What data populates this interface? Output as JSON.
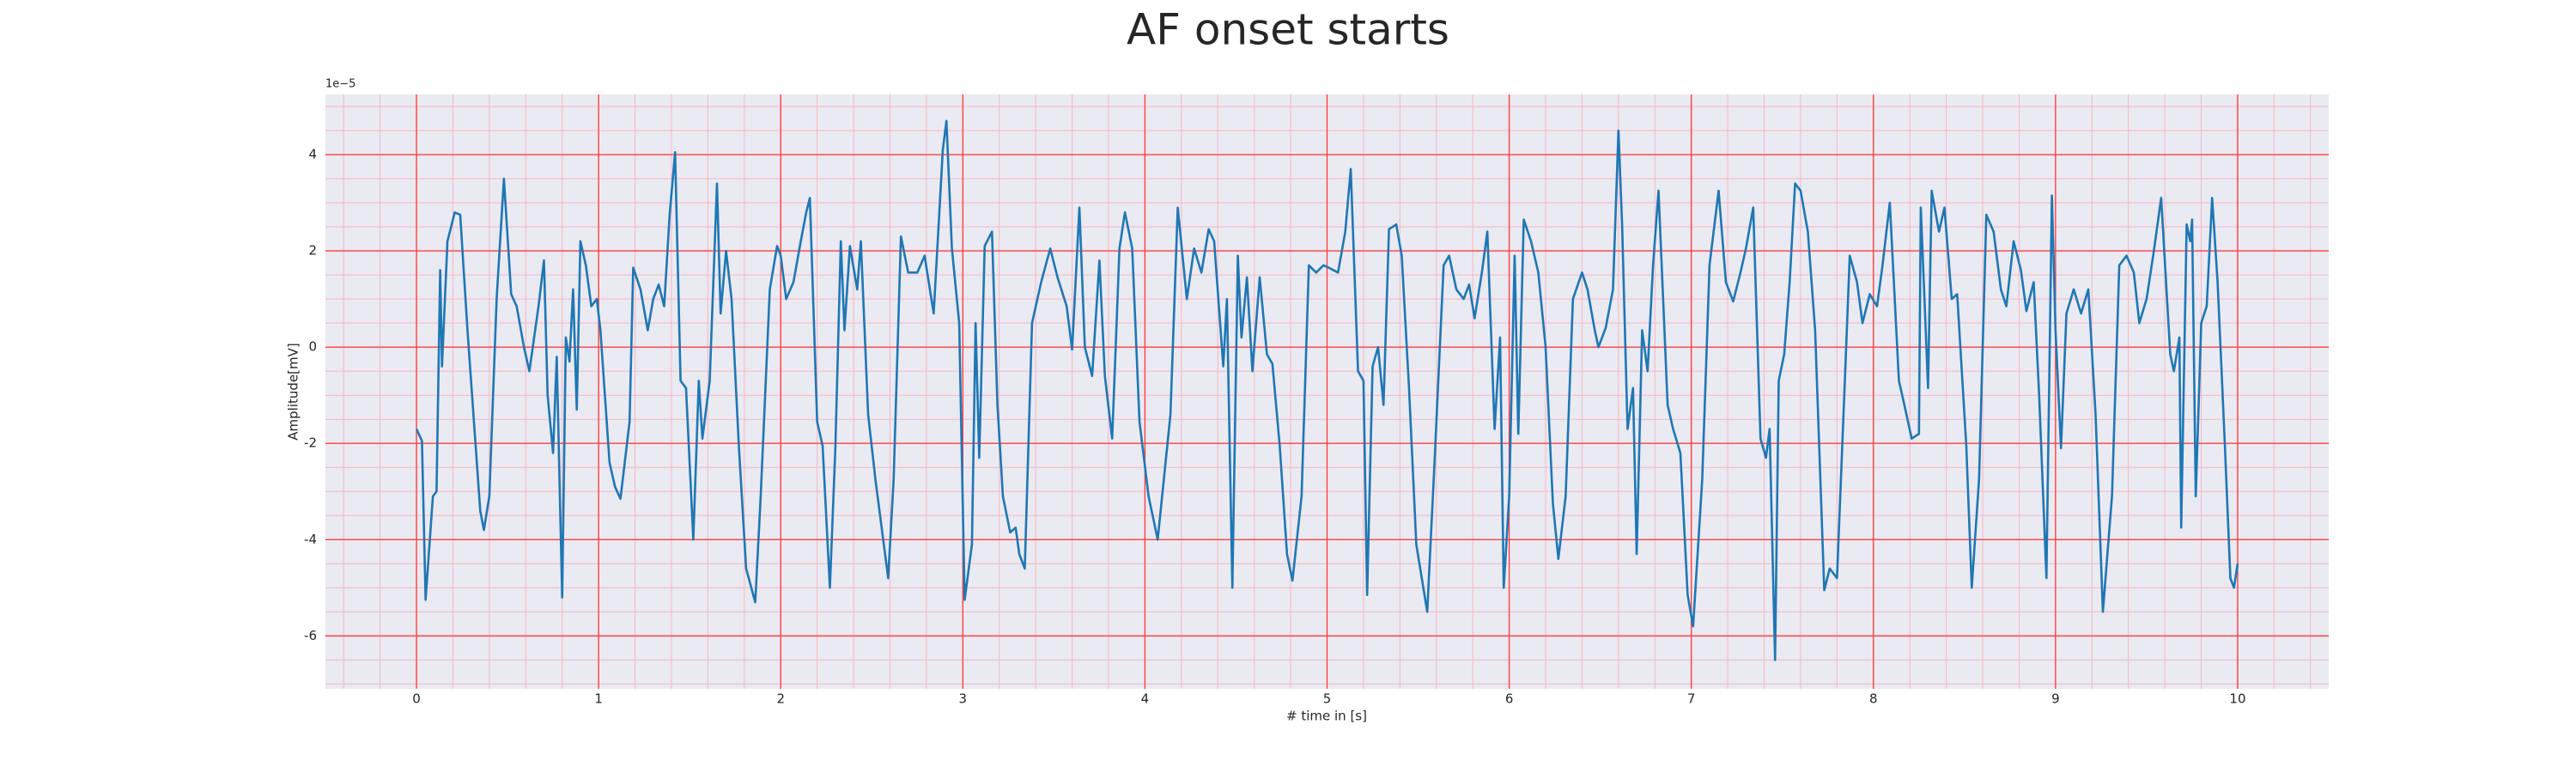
{
  "chart_data": {
    "type": "line",
    "title": "AF onset starts",
    "xlabel": "# time in [s]",
    "ylabel": "Amplitude[mV]",
    "y_offset_text": "1e−5",
    "xlim": [
      -0.5,
      10.5
    ],
    "ylim": [
      -7.1,
      5.25
    ],
    "xticks": [
      0,
      1,
      2,
      3,
      4,
      5,
      6,
      7,
      8,
      9,
      10
    ],
    "yticks": [
      -6,
      -4,
      -2,
      0,
      2,
      4
    ],
    "xminorticks": [
      -0.4,
      -0.2,
      0,
      0.2,
      0.4,
      0.6,
      0.8,
      1,
      1.2,
      1.4,
      1.6,
      1.8,
      2,
      2.2,
      2.4,
      2.6,
      2.8,
      3,
      3.2,
      3.4,
      3.6,
      3.8,
      4,
      4.2,
      4.4,
      4.6,
      4.8,
      5,
      5.2,
      5.4,
      5.6,
      5.8,
      6,
      6.2,
      6.4,
      6.6,
      6.8,
      7,
      7.2,
      7.4,
      7.6,
      7.8,
      8,
      8.2,
      8.4,
      8.6,
      8.8,
      9,
      9.2,
      9.4,
      9.6,
      9.8,
      10,
      10.2,
      10.4
    ],
    "yminorticks": [
      -7,
      -6.5,
      -6,
      -5.5,
      -5,
      -4.5,
      -4,
      -3.5,
      -3,
      -2.5,
      -2,
      -1.5,
      -1,
      -0.5,
      0,
      0.5,
      1,
      1.5,
      2,
      2.5,
      3,
      3.5,
      4,
      4.5,
      5
    ],
    "grid": true,
    "background": "#eaeaf2",
    "major_grid_color": "#ff4040",
    "minor_grid_color": "#f7b6c2",
    "series": [
      {
        "color": "#1f77b4",
        "x": [
          0,
          0.03,
          0.05,
          0.09,
          0.11,
          0.13,
          0.14,
          0.17,
          0.21,
          0.24,
          0.28,
          0.35,
          0.37,
          0.4,
          0.44,
          0.48,
          0.52,
          0.55,
          0.59,
          0.62,
          0.67,
          0.7,
          0.72,
          0.75,
          0.77,
          0.8,
          0.82,
          0.84,
          0.86,
          0.88,
          0.9,
          0.93,
          0.96,
          0.99,
          1.01,
          1.06,
          1.09,
          1.12,
          1.17,
          1.19,
          1.23,
          1.27,
          1.3,
          1.33,
          1.36,
          1.39,
          1.42,
          1.45,
          1.48,
          1.52,
          1.55,
          1.57,
          1.61,
          1.65,
          1.67,
          1.7,
          1.73,
          1.77,
          1.81,
          1.86,
          1.89,
          1.94,
          1.98,
          2.0,
          2.03,
          2.07,
          2.11,
          2.14,
          2.16,
          2.2,
          2.23,
          2.27,
          2.3,
          2.33,
          2.35,
          2.38,
          2.42,
          2.44,
          2.48,
          2.52,
          2.59,
          2.62,
          2.66,
          2.7,
          2.75,
          2.79,
          2.84,
          2.89,
          2.91,
          2.94,
          2.98,
          3.01,
          3.05,
          3.07,
          3.09,
          3.12,
          3.16,
          3.19,
          3.22,
          3.26,
          3.29,
          3.31,
          3.34,
          3.38,
          3.43,
          3.48,
          3.52,
          3.57,
          3.6,
          3.64,
          3.67,
          3.71,
          3.75,
          3.78,
          3.82,
          3.86,
          3.89,
          3.93,
          3.97,
          4.02,
          4.07,
          4.14,
          4.18,
          4.23,
          4.27,
          4.31,
          4.35,
          4.38,
          4.43,
          4.45,
          4.48,
          4.51,
          4.53,
          4.56,
          4.59,
          4.63,
          4.67,
          4.7,
          4.74,
          4.78,
          4.81,
          4.86,
          4.9,
          4.94,
          4.98,
          5.01,
          5.06,
          5.1,
          5.13,
          5.17,
          5.2,
          5.22,
          5.25,
          5.28,
          5.31,
          5.34,
          5.38,
          5.41,
          5.45,
          5.49,
          5.55,
          5.59,
          5.64,
          5.67,
          5.71,
          5.75,
          5.78,
          5.81,
          5.85,
          5.88,
          5.92,
          5.95,
          5.97,
          6.0,
          6.03,
          6.05,
          6.08,
          6.12,
          6.16,
          6.2,
          6.24,
          6.27,
          6.31,
          6.35,
          6.4,
          6.43,
          6.47,
          6.49,
          6.53,
          6.57,
          6.6,
          6.62,
          6.65,
          6.68,
          6.7,
          6.73,
          6.76,
          6.79,
          6.82,
          6.87,
          6.9,
          6.94,
          6.98,
          7.01,
          7.06,
          7.1,
          7.15,
          7.19,
          7.23,
          7.27,
          7.3,
          7.34,
          7.38,
          7.41,
          7.43,
          7.46,
          7.48,
          7.51,
          7.54,
          7.57,
          7.6,
          7.64,
          7.68,
          7.73,
          7.76,
          7.8,
          7.84,
          7.87,
          7.91,
          7.94,
          7.98,
          8.02,
          8.05,
          8.09,
          8.14,
          8.17,
          8.21,
          8.25,
          8.26,
          8.3,
          8.32,
          8.36,
          8.39,
          8.43,
          8.46,
          8.51,
          8.54,
          8.58,
          8.62,
          8.66,
          8.7,
          8.73,
          8.77,
          8.81,
          8.84,
          8.88,
          8.91,
          8.95,
          8.98,
          9.0,
          9.03,
          9.06,
          9.1,
          9.14,
          9.18,
          9.22,
          9.26,
          9.31,
          9.35,
          9.39,
          9.43,
          9.46,
          9.5,
          9.54,
          9.58,
          9.63,
          9.65,
          9.68,
          9.69,
          9.72,
          9.74,
          9.75,
          9.77,
          9.8,
          9.83,
          9.86,
          9.89,
          9.93,
          9.96,
          9.98,
          10.0
        ],
        "values": [
          -1.7,
          -1.95,
          -5.25,
          -3.1,
          -3.0,
          1.6,
          -0.4,
          2.2,
          2.8,
          2.75,
          0.35,
          -3.4,
          -3.8,
          -3.1,
          1.0,
          3.5,
          1.1,
          0.85,
          0,
          -0.5,
          0.85,
          1.8,
          -1.0,
          -2.2,
          -0.2,
          -5.2,
          0.2,
          -0.3,
          1.2,
          -1.3,
          2.2,
          1.7,
          0.85,
          1.0,
          0.35,
          -2.4,
          -2.9,
          -3.15,
          -1.55,
          1.65,
          1.2,
          0.35,
          1.0,
          1.3,
          0.85,
          2.75,
          4.05,
          -0.7,
          -0.85,
          -4.0,
          -0.7,
          -1.9,
          -0.7,
          3.4,
          0.7,
          2.0,
          1.0,
          -2.05,
          -4.6,
          -5.3,
          -3.1,
          1.2,
          2.1,
          1.9,
          1.0,
          1.35,
          2.2,
          2.8,
          3.1,
          -1.55,
          -2.05,
          -5.0,
          -2.1,
          2.2,
          0.35,
          2.1,
          1.2,
          2.2,
          -1.4,
          -2.75,
          -4.8,
          -2.75,
          2.3,
          1.55,
          1.55,
          1.9,
          0.7,
          4.1,
          4.7,
          2.05,
          0.5,
          -5.25,
          -4.1,
          0.5,
          -2.3,
          2.1,
          2.4,
          -1.2,
          -3.1,
          -3.85,
          -3.75,
          -4.3,
          -4.6,
          0.5,
          1.35,
          2.05,
          1.45,
          0.85,
          -0.05,
          2.9,
          0,
          -0.6,
          1.8,
          -0.6,
          -1.9,
          2.05,
          2.8,
          2.05,
          -1.55,
          -3.1,
          -4.0,
          -1.4,
          2.9,
          1.0,
          2.05,
          1.55,
          2.45,
          2.2,
          -0.4,
          1.0,
          -5.0,
          1.9,
          0.2,
          1.45,
          -0.5,
          1.45,
          -0.15,
          -0.35,
          -2.05,
          -4.3,
          -4.85,
          -3.1,
          1.7,
          1.55,
          1.7,
          1.65,
          1.55,
          2.4,
          3.7,
          -0.5,
          -0.7,
          -5.15,
          -0.4,
          0,
          -1.2,
          2.45,
          2.55,
          1.9,
          -0.85,
          -4.1,
          -5.5,
          -2.4,
          1.7,
          1.9,
          1.2,
          1.0,
          1.3,
          0.6,
          1.55,
          2.4,
          -1.7,
          0.2,
          -5.0,
          -3.1,
          1.9,
          -1.8,
          2.65,
          2.2,
          1.55,
          0,
          -3.25,
          -4.4,
          -3.1,
          1.0,
          1.55,
          1.2,
          0.35,
          0,
          0.4,
          1.2,
          4.5,
          2.55,
          -1.7,
          -0.85,
          -4.3,
          0.35,
          -0.5,
          1.7,
          3.25,
          -1.2,
          -1.7,
          -2.2,
          -5.15,
          -5.8,
          -2.75,
          1.7,
          3.25,
          1.35,
          0.95,
          1.55,
          2.05,
          2.9,
          -1.9,
          -2.3,
          -1.7,
          -6.5,
          -0.7,
          -0.15,
          1.35,
          3.4,
          3.25,
          2.4,
          0.35,
          -5.05,
          -4.6,
          -4.8,
          -1.0,
          1.9,
          1.35,
          0.5,
          1.1,
          0.85,
          1.7,
          3.0,
          -0.7,
          -1.2,
          -1.9,
          -1.8,
          2.9,
          -0.85,
          3.25,
          2.4,
          2.9,
          1.0,
          1.1,
          -2.05,
          -5.0,
          -2.75,
          2.75,
          2.4,
          1.2,
          0.85,
          2.2,
          1.6,
          0.75,
          1.35,
          -1.0,
          -4.8,
          3.15,
          0.35,
          -2.1,
          0.7,
          1.2,
          0.7,
          1.2,
          -1.4,
          -5.5,
          -3.1,
          1.7,
          1.9,
          1.55,
          0.5,
          1.0,
          2.0,
          3.1,
          -0.15,
          -0.5,
          0.2,
          -3.75,
          2.55,
          2.2,
          2.65,
          -3.1,
          0.5,
          0.85,
          3.1,
          1.35,
          -2.05,
          -4.8,
          -5.0,
          -4.5
        ]
      }
    ]
  }
}
